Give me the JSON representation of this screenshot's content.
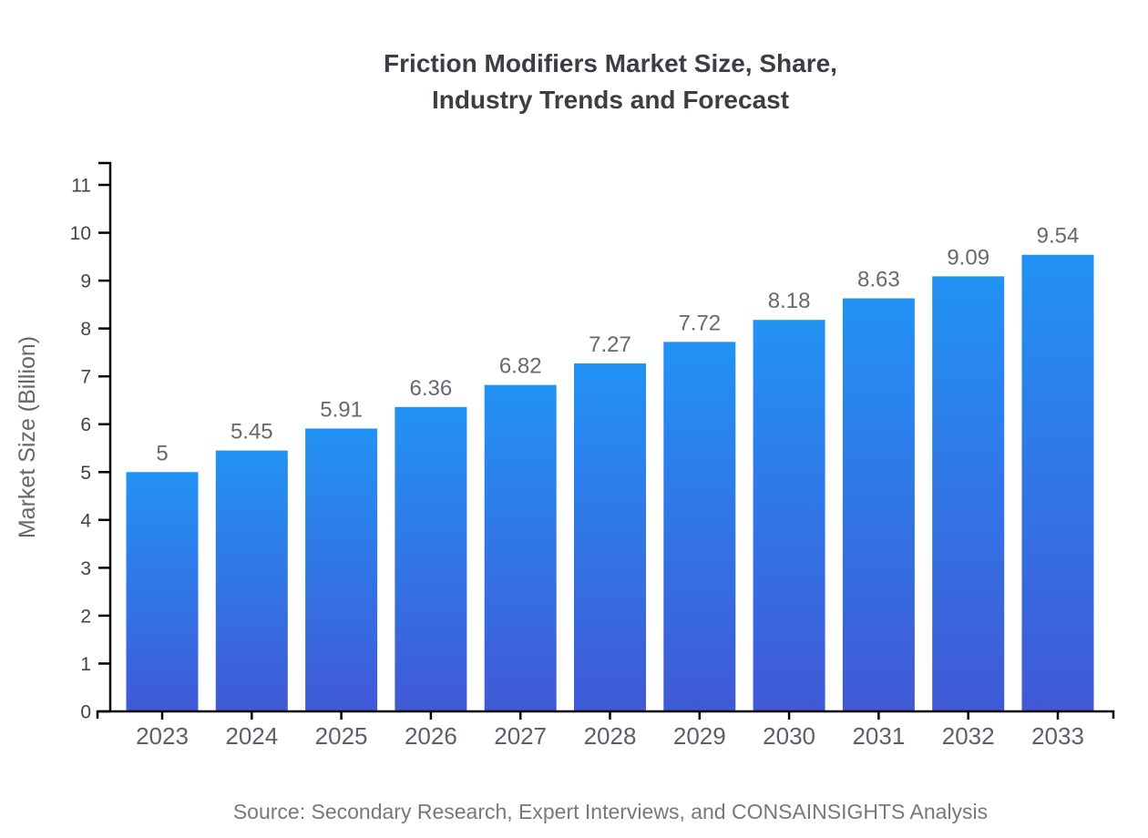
{
  "page": {
    "title_line1": "Friction Modifiers Market Size, Share,",
    "title_line2": "Industry Trends and Forecast",
    "source_note": "Source: Secondary Research, Expert Interviews, and CONSAINSIGHTS Analysis"
  },
  "chart_data": {
    "type": "bar",
    "title": "Friction Modifiers Market Size, Share, Industry Trends and Forecast",
    "xlabel": "",
    "ylabel": "Market Size (Billion)",
    "categories": [
      "2023",
      "2024",
      "2025",
      "2026",
      "2027",
      "2028",
      "2029",
      "2030",
      "2031",
      "2032",
      "2033"
    ],
    "values": [
      5,
      5.45,
      5.91,
      6.36,
      6.82,
      7.27,
      7.72,
      8.18,
      8.63,
      9.09,
      9.54
    ],
    "data_labels": [
      "5",
      "5.45",
      "5.91",
      "6.36",
      "6.82",
      "7.27",
      "7.72",
      "8.18",
      "8.63",
      "9.09",
      "9.54"
    ],
    "ylim": [
      0,
      11
    ],
    "yticks": [
      0,
      1,
      2,
      3,
      4,
      5,
      6,
      7,
      8,
      9,
      10,
      11
    ],
    "grid": false,
    "legend_position": "none",
    "source": "Source: Secondary Research, Expert Interviews, and CONSAINSIGHTS Analysis"
  },
  "colors": {
    "background": "#ffffff",
    "bar_gradient_top": "#2292f5",
    "bar_gradient_bottom": "#4159d6",
    "axis_line": "#000000",
    "title_text": "#3b3e45",
    "ylabel_text": "#63676e",
    "ytick_text": "#404348",
    "xtick_text": "#5c6066",
    "value_label_text": "#66696f",
    "source_text": "#75797f"
  }
}
